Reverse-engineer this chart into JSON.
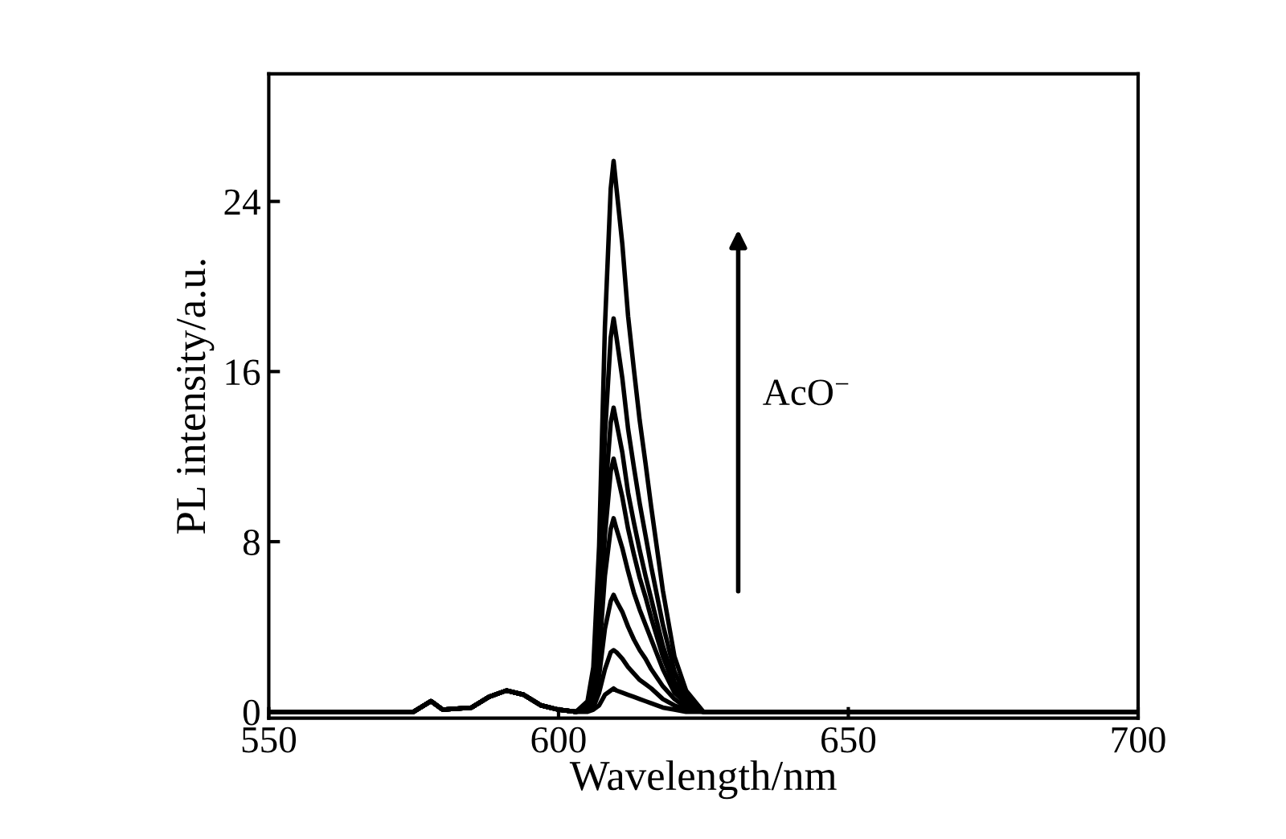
{
  "chart_data": {
    "type": "line",
    "xlabel": "Wavelength/nm",
    "ylabel": "PL intensity/a.u.",
    "x": [
      550,
      560,
      570,
      575,
      578,
      580,
      585,
      588,
      591,
      594,
      597,
      600,
      603,
      605,
      606,
      607,
      608,
      609,
      609.5,
      610,
      611,
      612,
      613,
      614,
      615,
      616,
      618,
      620,
      622,
      625,
      630,
      640,
      650,
      660,
      670,
      680,
      690,
      700
    ],
    "series": [
      {
        "color": "#000000",
        "values": [
          0,
          0,
          0,
          0,
          0.5,
          0.1,
          0.2,
          0.7,
          1.0,
          0.8,
          0.3,
          0.1,
          0,
          0.5,
          2.1,
          7.8,
          18.1,
          24.6,
          25.9,
          24.6,
          22.0,
          18.6,
          16.1,
          13.7,
          11.7,
          9.6,
          5.7,
          2.6,
          1.0,
          0,
          0,
          0,
          0,
          0,
          0,
          0,
          0,
          0
        ]
      },
      {
        "color": "#000000",
        "values": [
          0,
          0,
          0,
          0,
          0.5,
          0.1,
          0.2,
          0.7,
          1.0,
          0.8,
          0.3,
          0.1,
          0,
          0.4,
          1.5,
          5.6,
          13.0,
          17.6,
          18.5,
          17.6,
          15.7,
          13.3,
          11.5,
          9.8,
          8.3,
          6.8,
          4.1,
          1.9,
          0.7,
          0,
          0,
          0,
          0,
          0,
          0,
          0,
          0,
          0
        ]
      },
      {
        "color": "#000000",
        "values": [
          0,
          0,
          0,
          0,
          0.5,
          0.1,
          0.2,
          0.7,
          1.0,
          0.8,
          0.3,
          0.1,
          0,
          0.3,
          1.1,
          4.3,
          10.0,
          13.6,
          14.3,
          13.6,
          12.2,
          10.3,
          8.9,
          7.6,
          6.4,
          5.3,
          3.1,
          1.4,
          0.6,
          0,
          0,
          0,
          0,
          0,
          0,
          0,
          0,
          0
        ]
      },
      {
        "color": "#000000",
        "values": [
          0,
          0,
          0,
          0,
          0.5,
          0.1,
          0.2,
          0.7,
          1.0,
          0.8,
          0.3,
          0.1,
          0,
          0.2,
          1.0,
          3.6,
          8.3,
          11.3,
          11.9,
          11.3,
          10.1,
          8.6,
          7.4,
          6.3,
          5.4,
          4.4,
          2.6,
          1.2,
          0.5,
          0,
          0,
          0,
          0,
          0,
          0,
          0,
          0,
          0
        ]
      },
      {
        "color": "#000000",
        "values": [
          0,
          0,
          0,
          0,
          0.5,
          0.1,
          0.2,
          0.7,
          1.0,
          0.8,
          0.3,
          0.1,
          0,
          0.2,
          0.7,
          2.7,
          6.4,
          8.6,
          9.1,
          8.6,
          7.7,
          6.6,
          5.6,
          4.8,
          4.1,
          3.4,
          2.0,
          0.9,
          0.4,
          0,
          0,
          0,
          0,
          0,
          0,
          0,
          0,
          0
        ]
      },
      {
        "color": "#000000",
        "values": [
          0,
          0,
          0,
          0,
          0.5,
          0.1,
          0.2,
          0.7,
          1.0,
          0.8,
          0.3,
          0.1,
          0,
          0.1,
          0.4,
          1.7,
          3.9,
          5.2,
          5.5,
          5.2,
          4.7,
          4.0,
          3.4,
          2.9,
          2.5,
          2.0,
          1.2,
          0.6,
          0.2,
          0,
          0,
          0,
          0,
          0,
          0,
          0,
          0,
          0
        ]
      },
      {
        "color": "#000000",
        "values": [
          0,
          0,
          0,
          0,
          0.5,
          0.1,
          0.2,
          0.7,
          1.0,
          0.8,
          0.3,
          0.1,
          0,
          0.1,
          0.2,
          0.9,
          2.0,
          2.8,
          2.9,
          2.8,
          2.5,
          2.1,
          1.8,
          1.5,
          1.3,
          1.1,
          0.6,
          0.3,
          0.1,
          0,
          0,
          0,
          0,
          0,
          0,
          0,
          0,
          0
        ]
      },
      {
        "color": "#000000",
        "values": [
          0,
          0,
          0,
          0,
          0.5,
          0.1,
          0.2,
          0.7,
          1.0,
          0.8,
          0.3,
          0.1,
          0,
          0,
          0.1,
          0.3,
          0.8,
          1.0,
          1.1,
          1.0,
          0.9,
          0.8,
          0.7,
          0.6,
          0.5,
          0.4,
          0.2,
          0.1,
          0,
          0,
          0,
          0,
          0,
          0,
          0,
          0,
          0,
          0
        ]
      }
    ],
    "xlim": [
      550,
      700
    ],
    "xticks": [
      550,
      600,
      650,
      700
    ],
    "ylim": [
      -0.3,
      30
    ],
    "yticks": [
      0,
      8,
      16,
      24
    ],
    "annotations": [
      "AcO$^{−}$"
    ],
    "grid": false,
    "legend": false,
    "marker": "none",
    "line_style": "solid"
  }
}
